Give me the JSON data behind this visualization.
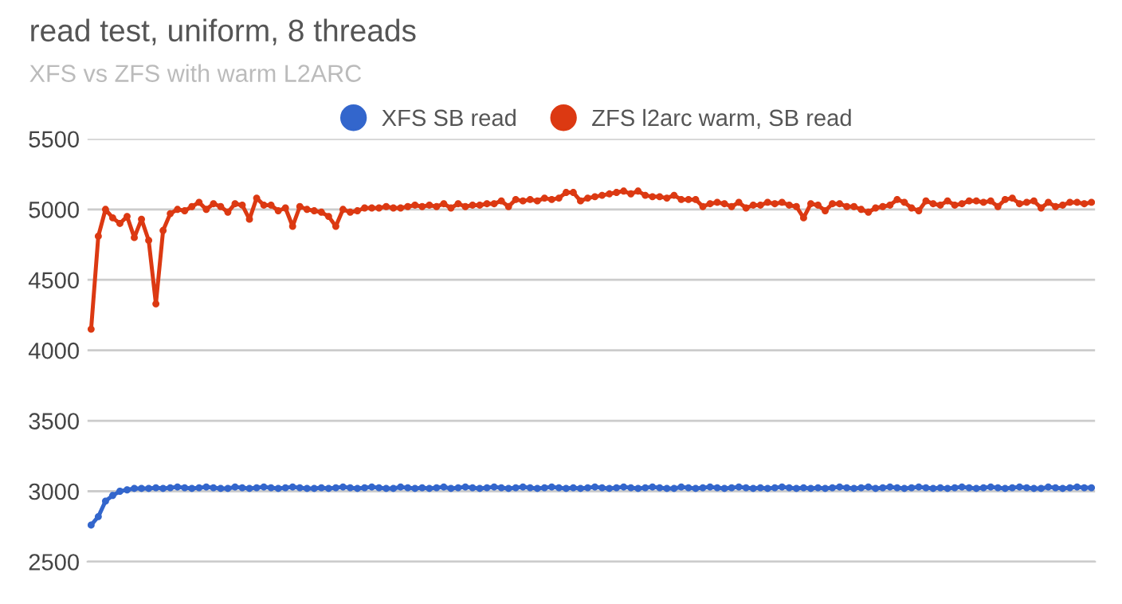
{
  "chart_data": {
    "type": "line",
    "title": "read test, uniform, 8 threads",
    "subtitle": "XFS vs ZFS with warm L2ARC",
    "categories": [
      null,
      null,
      null,
      null,
      null,
      null,
      null,
      null,
      null,
      null,
      null,
      null,
      null,
      null,
      null,
      null,
      null,
      null,
      null,
      null,
      null,
      null,
      null,
      null,
      null,
      null,
      null,
      null,
      null,
      null,
      null,
      null,
      null,
      null,
      null,
      null,
      null,
      null,
      null,
      null,
      null,
      null,
      null,
      null,
      null,
      null,
      null,
      null,
      null,
      null,
      null,
      null,
      null,
      null,
      null,
      null,
      null,
      null,
      null,
      null,
      null,
      null,
      null,
      null,
      null,
      null,
      null,
      null,
      null,
      null,
      null,
      null,
      null,
      null,
      null,
      null,
      null,
      null,
      null,
      null,
      null,
      null,
      null,
      null,
      null,
      null,
      null,
      null,
      null,
      null,
      null,
      null,
      null,
      null,
      null,
      null,
      null,
      null,
      null,
      null,
      null,
      null,
      null,
      null,
      null,
      null,
      null,
      null,
      null,
      null,
      null,
      null,
      null,
      null,
      null,
      null,
      null,
      null,
      null,
      null,
      null,
      null,
      null,
      null,
      null,
      null,
      null,
      null,
      null,
      null,
      null,
      null,
      null,
      null,
      null,
      null,
      null,
      null,
      null,
      null
    ],
    "series": [
      {
        "name": "XFS SB read",
        "color": "#3366cc",
        "values": [
          2760,
          2820,
          2930,
          2970,
          3000,
          3010,
          3020,
          3020,
          3020,
          3025,
          3020,
          3025,
          3030,
          3025,
          3020,
          3025,
          3030,
          3025,
          3020,
          3020,
          3030,
          3025,
          3020,
          3025,
          3030,
          3025,
          3020,
          3025,
          3030,
          3025,
          3020,
          3020,
          3025,
          3020,
          3025,
          3030,
          3025,
          3020,
          3025,
          3030,
          3025,
          3020,
          3020,
          3030,
          3025,
          3020,
          3025,
          3020,
          3025,
          3030,
          3020,
          3025,
          3030,
          3025,
          3020,
          3025,
          3030,
          3025,
          3020,
          3025,
          3030,
          3025,
          3020,
          3025,
          3030,
          3025,
          3020,
          3025,
          3020,
          3025,
          3030,
          3025,
          3020,
          3025,
          3030,
          3025,
          3020,
          3025,
          3030,
          3025,
          3020,
          3020,
          3030,
          3025,
          3020,
          3025,
          3030,
          3025,
          3020,
          3025,
          3030,
          3025,
          3020,
          3025,
          3020,
          3025,
          3030,
          3025,
          3020,
          3025,
          3020,
          3025,
          3020,
          3025,
          3030,
          3025,
          3020,
          3025,
          3030,
          3020,
          3025,
          3030,
          3025,
          3020,
          3025,
          3030,
          3025,
          3020,
          3025,
          3020,
          3025,
          3030,
          3025,
          3020,
          3025,
          3030,
          3025,
          3020,
          3025,
          3030,
          3025,
          3020,
          3020,
          3030,
          3025,
          3020,
          3025,
          3030,
          3025,
          3025
        ]
      },
      {
        "name": "ZFS l2arc warm, SB read",
        "color": "#dc3912",
        "values": [
          4150,
          4810,
          5000,
          4940,
          4900,
          4950,
          4800,
          4930,
          4780,
          4330,
          4850,
          4970,
          5000,
          4990,
          5020,
          5050,
          5000,
          5040,
          5020,
          4980,
          5040,
          5030,
          4930,
          5080,
          5030,
          5030,
          4990,
          5010,
          4880,
          5020,
          5000,
          4990,
          4980,
          4950,
          4880,
          5000,
          4980,
          4990,
          5010,
          5010,
          5010,
          5020,
          5010,
          5010,
          5020,
          5030,
          5020,
          5030,
          5020,
          5040,
          5010,
          5040,
          5020,
          5030,
          5030,
          5040,
          5040,
          5060,
          5020,
          5070,
          5060,
          5070,
          5060,
          5080,
          5070,
          5080,
          5120,
          5120,
          5060,
          5080,
          5090,
          5100,
          5110,
          5120,
          5130,
          5110,
          5130,
          5100,
          5090,
          5090,
          5080,
          5100,
          5070,
          5070,
          5070,
          5020,
          5040,
          5050,
          5040,
          5020,
          5050,
          5010,
          5030,
          5030,
          5050,
          5040,
          5050,
          5030,
          5020,
          4940,
          5040,
          5030,
          4990,
          5040,
          5040,
          5020,
          5020,
          5000,
          4980,
          5010,
          5020,
          5030,
          5070,
          5050,
          5010,
          4990,
          5060,
          5040,
          5030,
          5060,
          5030,
          5040,
          5060,
          5060,
          5050,
          5060,
          5020,
          5070,
          5080,
          5040,
          5050,
          5060,
          5010,
          5050,
          5020,
          5030,
          5050,
          5050,
          5040,
          5050
        ]
      }
    ],
    "ylim": [
      2500,
      5500
    ],
    "yticks": [
      2500,
      3000,
      3500,
      4000,
      4500,
      5000,
      5500
    ],
    "grid": "y",
    "legend": "top",
    "tick_labels": "y",
    "marker": "circle",
    "line_style": "solid"
  }
}
